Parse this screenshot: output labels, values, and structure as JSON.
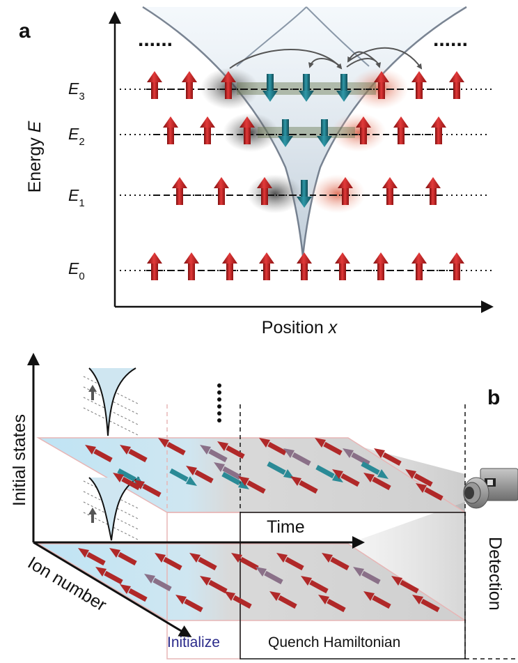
{
  "panel_a": {
    "label": "a",
    "y_axis_label_text": "Energy ",
    "y_axis_label_var": "E",
    "x_axis_label_text": "Position ",
    "x_axis_label_var": "x",
    "levels": [
      {
        "sym": "E",
        "sub": "3"
      },
      {
        "sym": "E",
        "sub": "2"
      },
      {
        "sym": "E",
        "sub": "1"
      },
      {
        "sym": "E",
        "sub": "0"
      }
    ],
    "colors": {
      "spin_up": "#c81e1e",
      "spin_down": "#1f7a8c",
      "well": "#5a6678"
    }
  },
  "panel_b": {
    "label": "b",
    "y_axis_label": "Initial states",
    "time_label": "Time",
    "ion_axis_label": "Ion number",
    "detection_label": "Detection",
    "initialize_label": "Initialize",
    "quench_label": "Quench Hamiltonian",
    "colors": {
      "initialize": "#2a2a8a",
      "plane": "#bfe4f4",
      "arrow_red": "#b02828",
      "arrow_teal": "#2a8a96",
      "arrow_mauve": "#8a7088"
    }
  }
}
